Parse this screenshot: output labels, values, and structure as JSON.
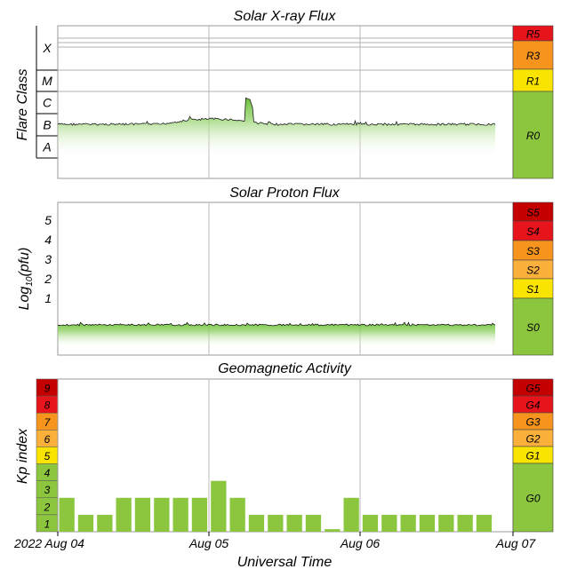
{
  "chart_data": [
    {
      "type": "area",
      "title": "Solar X-ray Flux",
      "ylabel": "Flare Class",
      "y_classes": [
        "X",
        "M",
        "C",
        "B",
        "A"
      ],
      "scale": [
        {
          "label": "R5",
          "color": "#e8141c"
        },
        {
          "label": "R3",
          "color": "#f7941d"
        },
        {
          "label": "R1",
          "color": "#f8e400"
        },
        {
          "label": "R0",
          "color": "#8cc63f"
        }
      ],
      "series_note": "continuous background flux near B-class with a C-class spike on Aug 05",
      "baseline_class": "B",
      "peak": {
        "class": "C",
        "time": "Aug 05 ~05:30"
      }
    },
    {
      "type": "area",
      "title": "Solar Proton Flux",
      "ylabel": "Log10(pfu)",
      "yticks": [
        1,
        2,
        3,
        4,
        5
      ],
      "scale": [
        {
          "label": "S5",
          "color": "#c40000"
        },
        {
          "label": "S4",
          "color": "#e8141c"
        },
        {
          "label": "S3",
          "color": "#f7941d"
        },
        {
          "label": "S2",
          "color": "#fbb03b"
        },
        {
          "label": "S1",
          "color": "#f8e400"
        },
        {
          "label": "S0",
          "color": "#8cc63f"
        }
      ],
      "baseline_log_pfu": -0.7
    },
    {
      "type": "bar",
      "title": "Geomagnetic Activity",
      "ylabel": "Kp index",
      "xlabel": "Universal Time",
      "ylim": [
        0,
        9
      ],
      "kp_scale": [
        {
          "label": "9",
          "color": "#c40000"
        },
        {
          "label": "8",
          "color": "#e8141c"
        },
        {
          "label": "7",
          "color": "#f7941d"
        },
        {
          "label": "6",
          "color": "#fbb03b"
        },
        {
          "label": "5",
          "color": "#f8e400"
        },
        {
          "label": "4",
          "color": "#8cc63f"
        },
        {
          "label": "3",
          "color": "#8cc63f"
        },
        {
          "label": "2",
          "color": "#8cc63f"
        },
        {
          "label": "1",
          "color": "#8cc63f"
        }
      ],
      "g_scale": [
        {
          "label": "G5",
          "color": "#c40000"
        },
        {
          "label": "G4",
          "color": "#e8141c"
        },
        {
          "label": "G3",
          "color": "#f7941d"
        },
        {
          "label": "G2",
          "color": "#fbb03b"
        },
        {
          "label": "G1",
          "color": "#f8e400"
        },
        {
          "label": "G0",
          "color": "#8cc63f"
        }
      ],
      "values": [
        2.0,
        1.0,
        1.0,
        2.0,
        2.0,
        2.0,
        2.0,
        2.0,
        3.0,
        2.0,
        1.0,
        1.0,
        1.0,
        1.0,
        0.15,
        2.0,
        1.0,
        1.0,
        1.0,
        1.0,
        1.0,
        1.0,
        1.0
      ],
      "xticks": [
        "2022 Aug 04",
        "Aug 05",
        "Aug 06",
        "Aug 07"
      ],
      "bar_color": "#8cc63f"
    }
  ]
}
